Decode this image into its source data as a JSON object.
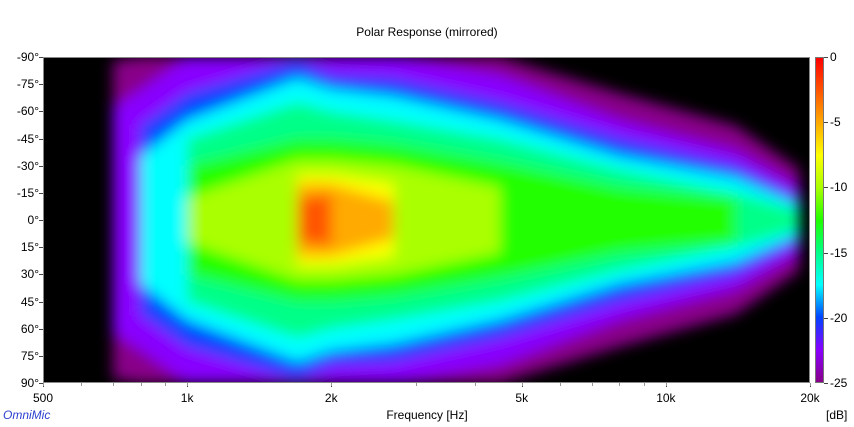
{
  "chart_data": {
    "type": "heatmap",
    "title": "Polar Response (mirrored)",
    "xlabel": "Frequency [Hz]",
    "ylabel": "",
    "x_scale": "log",
    "xlim": [
      500,
      20000
    ],
    "ylim": [
      -90,
      90
    ],
    "x_ticks": [
      {
        "value": 500,
        "label": "500"
      },
      {
        "value": 1000,
        "label": "1k"
      },
      {
        "value": 2000,
        "label": "2k"
      },
      {
        "value": 5000,
        "label": "5k"
      },
      {
        "value": 10000,
        "label": "10k"
      },
      {
        "value": 20000,
        "label": "20k"
      }
    ],
    "y_ticks": [
      {
        "value": -90,
        "label": "-90°"
      },
      {
        "value": -75,
        "label": "-75°"
      },
      {
        "value": -60,
        "label": "-60°"
      },
      {
        "value": -45,
        "label": "-45°"
      },
      {
        "value": -30,
        "label": "-30°"
      },
      {
        "value": -15,
        "label": "-15°"
      },
      {
        "value": 0,
        "label": "0°"
      },
      {
        "value": 15,
        "label": "15°"
      },
      {
        "value": 30,
        "label": "30°"
      },
      {
        "value": 45,
        "label": "45°"
      },
      {
        "value": 60,
        "label": "60°"
      },
      {
        "value": 75,
        "label": "75°"
      },
      {
        "value": 90,
        "label": "90°"
      }
    ],
    "colorbar": {
      "range": [
        -25,
        0
      ],
      "unit": "[dB]",
      "ticks": [
        {
          "value": 0,
          "label": "0"
        },
        {
          "value": -5,
          "label": "-5"
        },
        {
          "value": -10,
          "label": "-10"
        },
        {
          "value": -15,
          "label": "-15"
        },
        {
          "value": -20,
          "label": "-20"
        },
        {
          "value": -25,
          "label": "-25"
        }
      ],
      "stops": [
        {
          "value": 0,
          "color": "#ff0000"
        },
        {
          "value": -2.5,
          "color": "#ff5500"
        },
        {
          "value": -5,
          "color": "#ffaa00"
        },
        {
          "value": -7.5,
          "color": "#ffff00"
        },
        {
          "value": -10,
          "color": "#aaff00"
        },
        {
          "value": -12.5,
          "color": "#22ff00"
        },
        {
          "value": -15,
          "color": "#00ff88"
        },
        {
          "value": -17.5,
          "color": "#00ffff"
        },
        {
          "value": -20,
          "color": "#0044ff"
        },
        {
          "value": -22.5,
          "color": "#8800ff"
        },
        {
          "value": -25,
          "color": "#880088"
        }
      ]
    },
    "mirrored": true,
    "series": [
      {
        "freq": 700,
        "contours": [
          {
            "level": -25,
            "angle": 88
          },
          {
            "level": -22.5,
            "angle": 62
          }
        ]
      },
      {
        "freq": 800,
        "contours": [
          {
            "level": -25,
            "angle": 90
          },
          {
            "level": -22.5,
            "angle": 72
          },
          {
            "level": -20,
            "angle": 52
          },
          {
            "level": -17.5,
            "angle": 35
          }
        ]
      },
      {
        "freq": 1000,
        "contours": [
          {
            "level": -25,
            "angle": 90
          },
          {
            "level": -22.5,
            "angle": 90
          },
          {
            "level": -20,
            "angle": 70
          },
          {
            "level": -17.5,
            "angle": 55
          },
          {
            "level": -15,
            "angle": 45
          },
          {
            "level": -12.5,
            "angle": 30
          },
          {
            "level": -10,
            "angle": 12
          }
        ]
      },
      {
        "freq": 1700,
        "contours": [
          {
            "level": -25,
            "angle": 90
          },
          {
            "level": -22.5,
            "angle": 90
          },
          {
            "level": -20,
            "angle": 88
          },
          {
            "level": -17.5,
            "angle": 78
          },
          {
            "level": -15,
            "angle": 65
          },
          {
            "level": -12.5,
            "angle": 45
          },
          {
            "level": -10,
            "angle": 33
          },
          {
            "level": -7.5,
            "angle": 25
          },
          {
            "level": -5,
            "angle": 20
          },
          {
            "level": -2.5,
            "angle": 12
          }
        ]
      },
      {
        "freq": 2000,
        "contours": [
          {
            "level": -25,
            "angle": 90
          },
          {
            "level": -22.5,
            "angle": 90
          },
          {
            "level": -20,
            "angle": 80
          },
          {
            "level": -17.5,
            "angle": 72
          },
          {
            "level": -15,
            "angle": 60
          },
          {
            "level": -12.5,
            "angle": 45
          },
          {
            "level": -10,
            "angle": 33
          },
          {
            "level": -7.5,
            "angle": 25
          },
          {
            "level": -5,
            "angle": 20
          },
          {
            "level": -2.5,
            "angle": 14
          },
          {
            "level": 0,
            "angle": 5
          }
        ]
      },
      {
        "freq": 2700,
        "contours": [
          {
            "level": -25,
            "angle": 90
          },
          {
            "level": -22.5,
            "angle": 90
          },
          {
            "level": -20,
            "angle": 78
          },
          {
            "level": -17.5,
            "angle": 68
          },
          {
            "level": -15,
            "angle": 55
          },
          {
            "level": -12.5,
            "angle": 42
          },
          {
            "level": -10,
            "angle": 30
          },
          {
            "level": -7.5,
            "angle": 20
          },
          {
            "level": -5,
            "angle": 10
          }
        ]
      },
      {
        "freq": 4500,
        "contours": [
          {
            "level": -25,
            "angle": 90
          },
          {
            "level": -22.5,
            "angle": 80
          },
          {
            "level": -20,
            "angle": 65
          },
          {
            "level": -17.5,
            "angle": 55
          },
          {
            "level": -15,
            "angle": 45
          },
          {
            "level": -12.5,
            "angle": 32
          },
          {
            "level": -10,
            "angle": 18
          }
        ]
      },
      {
        "freq": 8000,
        "contours": [
          {
            "level": -25,
            "angle": 70
          },
          {
            "level": -22.5,
            "angle": 55
          },
          {
            "level": -20,
            "angle": 45
          },
          {
            "level": -17.5,
            "angle": 35
          },
          {
            "level": -15,
            "angle": 28
          },
          {
            "level": -12.5,
            "angle": 18
          }
        ]
      },
      {
        "freq": 14000,
        "contours": [
          {
            "level": -25,
            "angle": 52
          },
          {
            "level": -22.5,
            "angle": 38
          },
          {
            "level": -20,
            "angle": 30
          },
          {
            "level": -17.5,
            "angle": 23
          },
          {
            "level": -15,
            "angle": 15
          },
          {
            "level": -12.5,
            "angle": 12
          }
        ]
      },
      {
        "freq": 19000,
        "contours": [
          {
            "level": -25,
            "angle": 28
          },
          {
            "level": -22.5,
            "angle": 18
          },
          {
            "level": -20,
            "angle": 12
          },
          {
            "level": -17.5,
            "angle": 8
          },
          {
            "level": -15,
            "angle": 5
          }
        ]
      }
    ]
  },
  "brand": "OmniMic"
}
